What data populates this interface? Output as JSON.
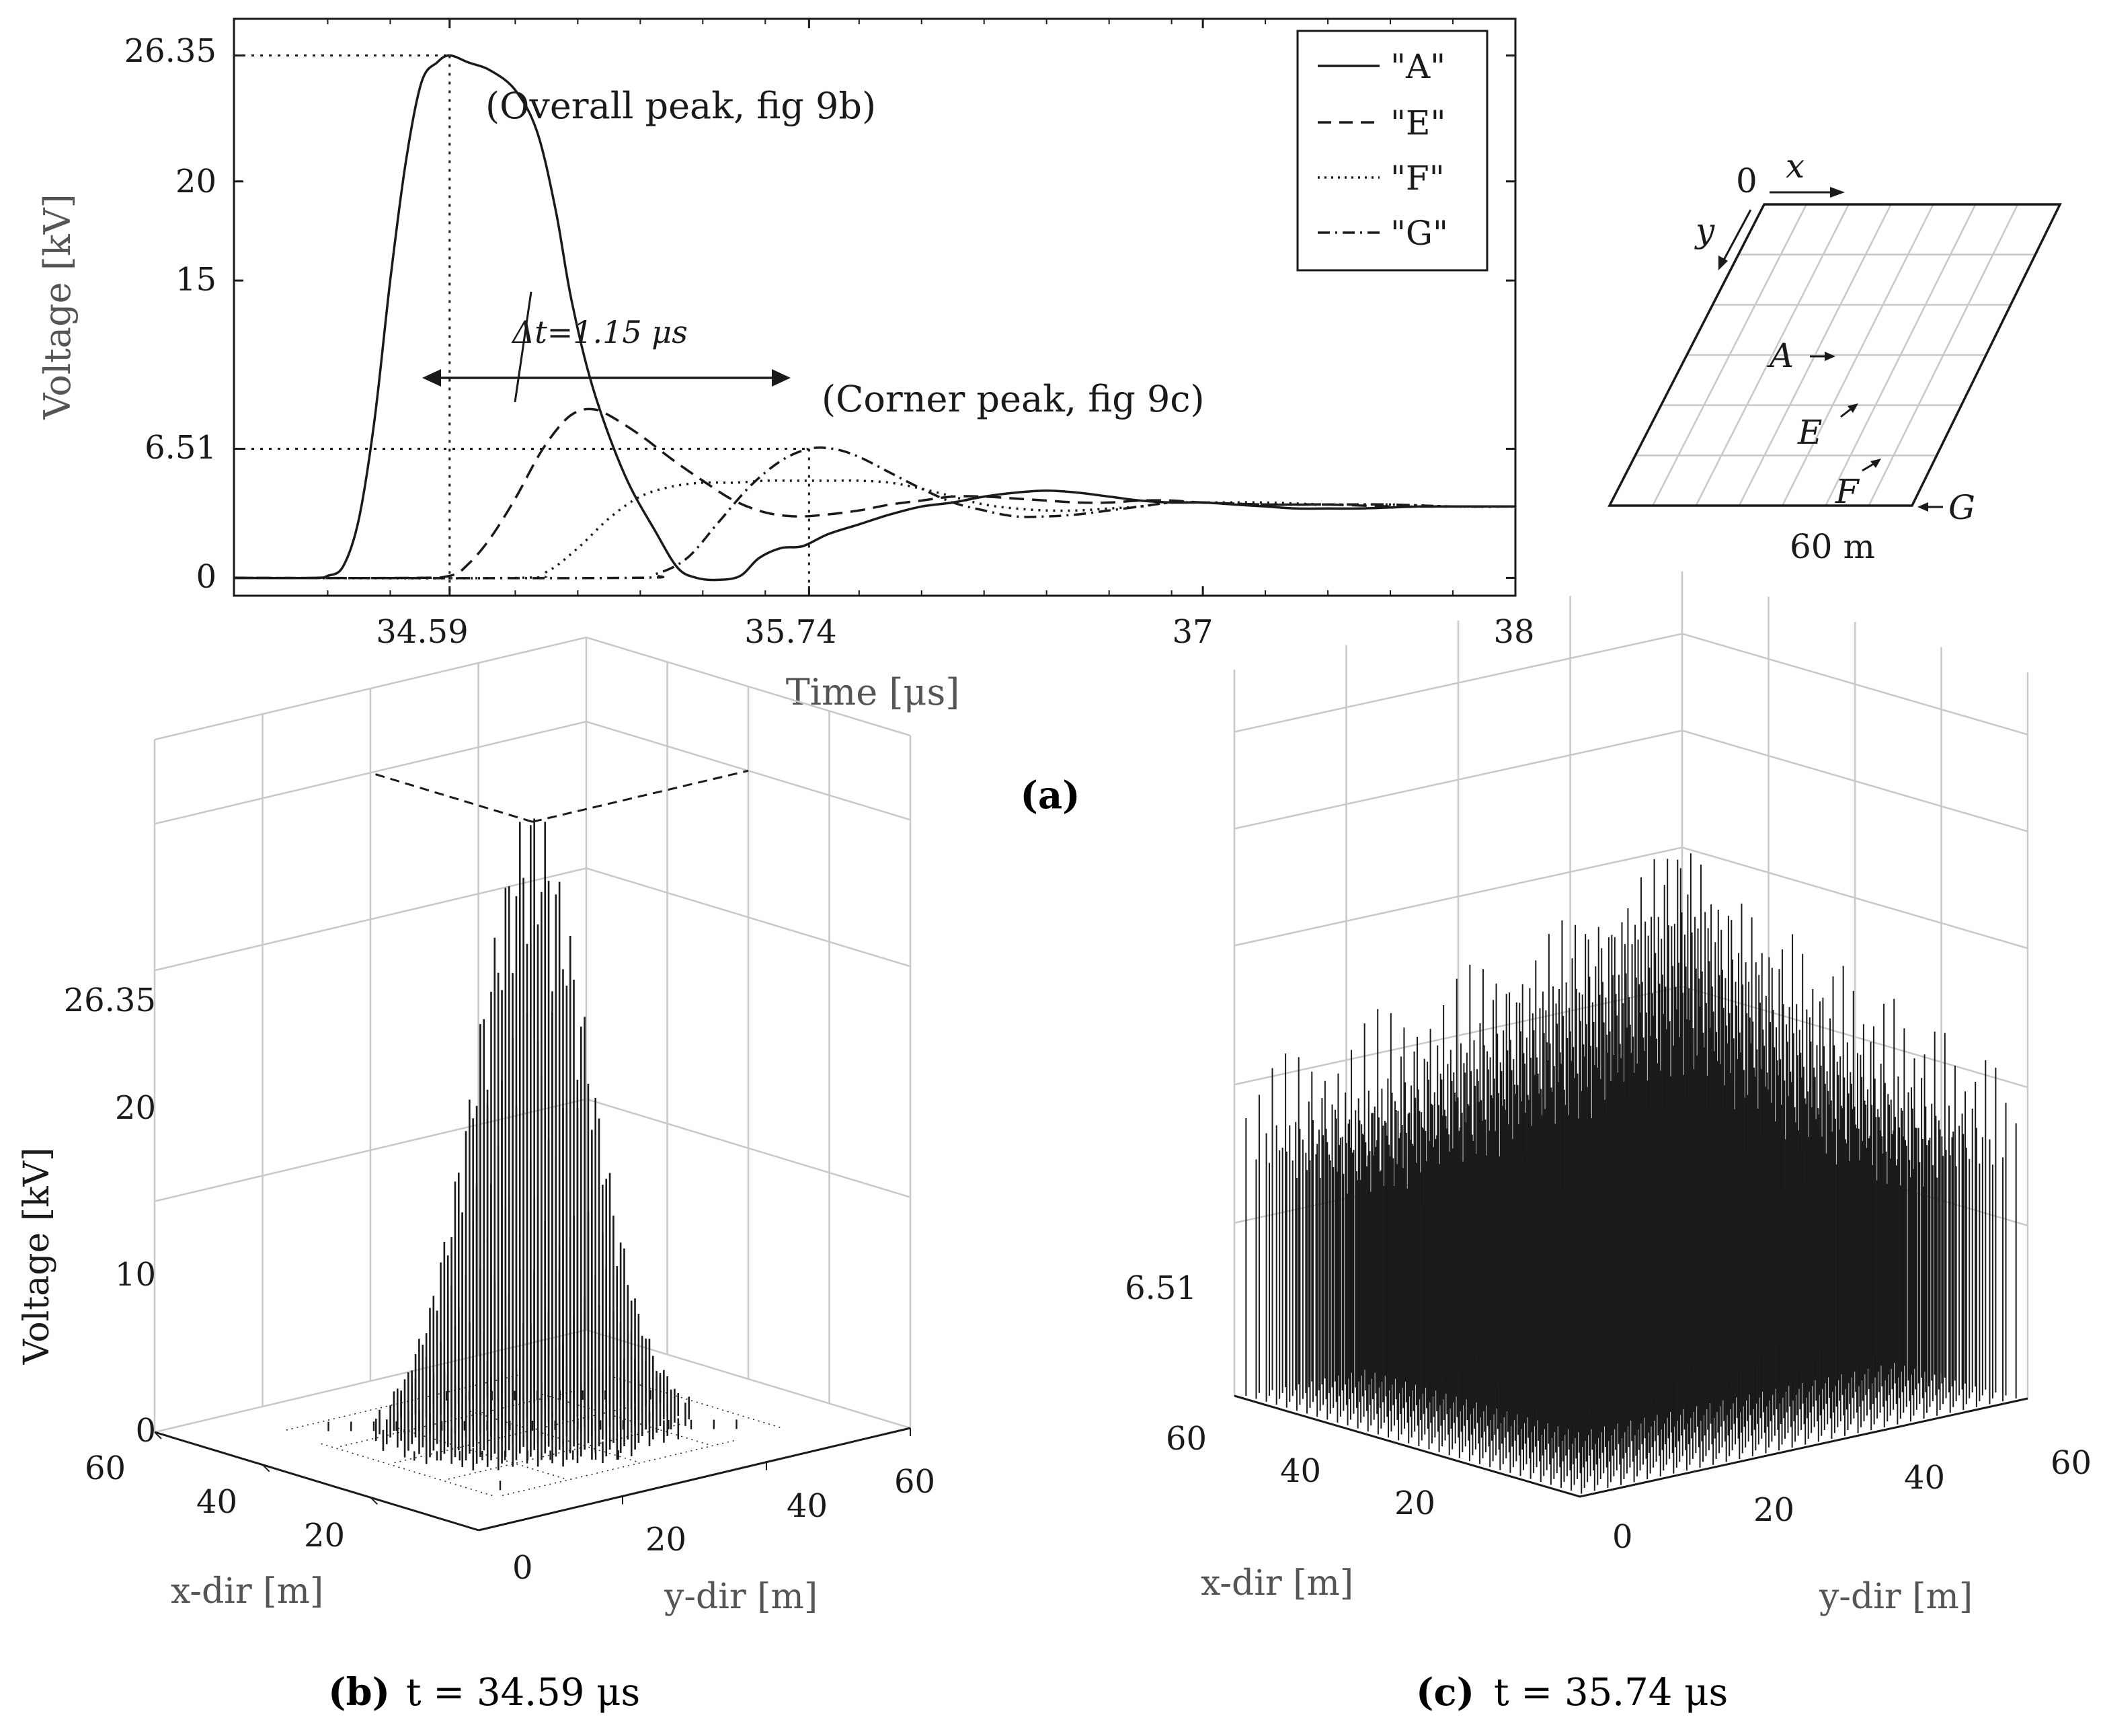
{
  "chart_data": [
    {
      "panel": "a",
      "type": "line",
      "title": "",
      "xlabel": "Time [μs]",
      "ylabel": "Voltage [kV]",
      "xlim": [
        33.9,
        38.0
      ],
      "ylim": [
        -0.9,
        28.2
      ],
      "x_ticks": [
        "34.59",
        "35.74",
        "37",
        "38"
      ],
      "y_ticks": [
        "0",
        "6.51",
        "15",
        "20",
        "26.35"
      ],
      "x_tick_values": [
        34.59,
        35.74,
        37,
        38
      ],
      "y_tick_values": [
        0,
        6.51,
        15,
        20,
        26.35
      ],
      "grid": false,
      "legend": {
        "placement": "top-right",
        "entries": [
          "\"A\"",
          "\"E\"",
          "\"F\"",
          "\"G\""
        ]
      },
      "series": [
        {
          "name": "\"A\"",
          "style": "solid",
          "x": [
            33.9,
            34.15,
            34.2,
            34.25,
            34.3,
            34.35,
            34.4,
            34.45,
            34.5,
            34.55,
            34.59,
            34.65,
            34.72,
            34.8,
            34.87,
            34.93,
            34.98,
            35.05,
            35.15,
            35.25,
            35.32,
            35.38,
            35.45,
            35.52,
            35.58,
            35.65,
            35.72,
            35.8,
            35.9,
            36.0,
            36.1,
            36.2,
            36.3,
            36.4,
            36.5,
            36.6,
            36.7,
            36.8,
            36.9,
            37.0,
            37.1,
            37.2,
            37.3,
            37.4,
            37.5,
            37.6,
            37.7,
            37.8,
            37.9,
            38.0
          ],
          "y": [
            0,
            0,
            0.1,
            0.6,
            3.0,
            8.0,
            15.0,
            21.0,
            25.0,
            26.0,
            26.35,
            26.0,
            25.6,
            24.6,
            22.5,
            18.5,
            14.0,
            9.5,
            5.2,
            2.3,
            0.5,
            0.0,
            -0.1,
            0.1,
            1.0,
            1.5,
            1.6,
            2.2,
            2.7,
            3.2,
            3.6,
            3.8,
            4.1,
            4.3,
            4.4,
            4.3,
            4.1,
            3.9,
            3.8,
            3.8,
            3.7,
            3.6,
            3.5,
            3.5,
            3.5,
            3.55,
            3.6,
            3.6,
            3.6,
            3.6
          ]
        },
        {
          "name": "\"E\"",
          "style": "dashed",
          "x": [
            33.9,
            34.45,
            34.59,
            34.65,
            34.72,
            34.8,
            34.88,
            34.95,
            35.0,
            35.05,
            35.1,
            35.2,
            35.3,
            35.4,
            35.5,
            35.6,
            35.7,
            35.8,
            35.9,
            36.0,
            36.1,
            36.2,
            36.3,
            36.4,
            36.5,
            36.6,
            36.7,
            36.8,
            36.9,
            37.0,
            37.2,
            37.4,
            37.6,
            37.8,
            38.0
          ],
          "y": [
            0,
            0,
            0.1,
            0.7,
            2.0,
            4.0,
            6.3,
            7.8,
            8.4,
            8.5,
            8.2,
            7.2,
            6.0,
            4.9,
            3.9,
            3.3,
            3.1,
            3.2,
            3.4,
            3.7,
            3.9,
            4.1,
            4.1,
            4.0,
            3.9,
            3.8,
            3.8,
            3.9,
            3.9,
            3.8,
            3.7,
            3.7,
            3.6,
            3.6,
            3.6
          ]
        },
        {
          "name": "\"F\"",
          "style": "dotted",
          "x": [
            33.9,
            34.8,
            34.9,
            35.0,
            35.1,
            35.2,
            35.3,
            35.4,
            35.5,
            35.6,
            35.7,
            35.8,
            35.9,
            36.0,
            36.1,
            36.2,
            36.3,
            36.4,
            36.5,
            36.6,
            36.7,
            36.8,
            36.9,
            37.0,
            37.2,
            37.4,
            37.6,
            37.8,
            38.0
          ],
          "y": [
            0,
            0,
            0.3,
            1.5,
            3.0,
            4.1,
            4.6,
            4.8,
            4.8,
            4.9,
            4.9,
            4.9,
            4.9,
            4.8,
            4.5,
            4.1,
            3.7,
            3.5,
            3.4,
            3.4,
            3.5,
            3.6,
            3.8,
            3.8,
            3.8,
            3.7,
            3.7,
            3.6,
            3.6
          ]
        },
        {
          "name": "\"G\"",
          "style": "dashdot",
          "x": [
            33.9,
            35.15,
            35.25,
            35.35,
            35.45,
            35.55,
            35.65,
            35.74,
            35.82,
            35.9,
            36.0,
            36.1,
            36.2,
            36.3,
            36.4,
            36.5,
            36.6,
            36.7,
            36.8,
            36.9,
            37.0,
            37.2,
            37.4,
            37.6,
            37.8,
            38.0
          ],
          "y": [
            0,
            0,
            0.2,
            1.0,
            2.8,
            4.6,
            5.9,
            6.51,
            6.5,
            6.1,
            5.3,
            4.5,
            3.8,
            3.4,
            3.1,
            3.1,
            3.2,
            3.4,
            3.6,
            3.8,
            3.8,
            3.7,
            3.7,
            3.7,
            3.6,
            3.6
          ]
        }
      ],
      "annotations": [
        {
          "text": "(Overall peak, fig 9b)",
          "x": 34.59,
          "y": 26.35
        },
        {
          "text": "(Corner peak, fig 9c)",
          "x": 35.74,
          "y": 6.51
        },
        {
          "text": "Δt=1.15 μs",
          "interval": [
            34.59,
            35.74
          ]
        }
      ],
      "inset": {
        "labels": {
          "origin": "0",
          "x_axis": "x",
          "y_axis": "y",
          "width": "60 m"
        },
        "points": [
          "A",
          "E",
          "F",
          "G"
        ],
        "grid": [
          7,
          6
        ]
      }
    },
    {
      "panel": "b",
      "type": "bar3d",
      "zlabel": "Voltage [kV]",
      "xlabel": "x-dir [m]",
      "ylabel": "y-dir [m]",
      "z_ticks": [
        "0",
        "10",
        "20",
        "26.35"
      ],
      "z_tick_values": [
        0,
        10,
        20,
        26.35
      ],
      "x_ticks": [
        "60",
        "40",
        "20"
      ],
      "y_ticks": [
        "0",
        "20",
        "40",
        "60"
      ],
      "zlim": [
        0,
        30
      ],
      "peak": 26.35,
      "peak_location": "center of grid",
      "caption_label": "(b)",
      "caption_text": "t = 34.59 μs"
    },
    {
      "panel": "c",
      "type": "bar3d",
      "xlabel": "x-dir [m]",
      "ylabel": "y-dir [m]",
      "z_ticks": [
        "6.51"
      ],
      "z_tick_values": [
        6.51
      ],
      "x_ticks": [
        "60",
        "40",
        "20"
      ],
      "y_ticks": [
        "0",
        "20",
        "40",
        "60"
      ],
      "peak": 6.51,
      "peak_location": "far corner",
      "caption_label": "(c)",
      "caption_text": "t = 35.74 μs"
    }
  ],
  "captions": {
    "a": "(a)"
  },
  "colors": {
    "ink": "#1a1a1a",
    "grid": "#c8c8c8",
    "label_gray": "#555555"
  }
}
